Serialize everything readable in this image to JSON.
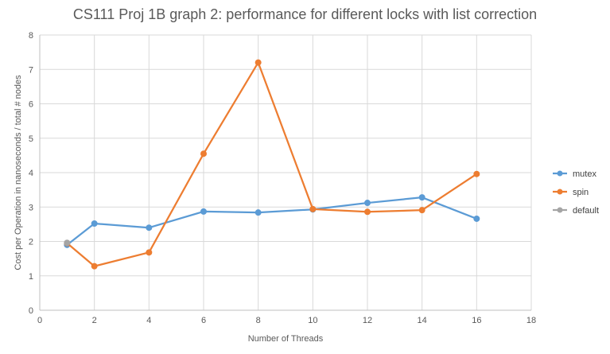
{
  "chart_data": {
    "type": "line",
    "title": "CS111 Proj 1B graph 2: performance for different locks with list correction",
    "xlabel": "Number of Threads",
    "ylabel": "Cost per Operation in nanoseconds / total # nodes",
    "xlim": [
      0,
      18
    ],
    "ylim": [
      0,
      8
    ],
    "x_ticks": [
      0,
      2,
      4,
      6,
      8,
      10,
      12,
      14,
      16,
      18
    ],
    "y_ticks": [
      0,
      1,
      2,
      3,
      4,
      5,
      6,
      7,
      8
    ],
    "grid": true,
    "legend_position": "right",
    "series": [
      {
        "name": "mutex",
        "color": "#5B9BD5",
        "points": [
          [
            1,
            1.9
          ],
          [
            2,
            2.52
          ],
          [
            4,
            2.4
          ],
          [
            6,
            2.87
          ],
          [
            8,
            2.84
          ],
          [
            10,
            2.93
          ],
          [
            12,
            3.12
          ],
          [
            14,
            3.28
          ],
          [
            16,
            2.66
          ]
        ]
      },
      {
        "name": "spin",
        "color": "#ED7D31",
        "points": [
          [
            1,
            1.95
          ],
          [
            2,
            1.28
          ],
          [
            4,
            1.68
          ],
          [
            6,
            4.55
          ],
          [
            8,
            7.2
          ],
          [
            10,
            2.94
          ],
          [
            12,
            2.86
          ],
          [
            14,
            2.91
          ],
          [
            16,
            3.96
          ]
        ]
      },
      {
        "name": "default",
        "color": "#A5A5A5",
        "points": [
          [
            1,
            1.96
          ]
        ]
      }
    ]
  }
}
